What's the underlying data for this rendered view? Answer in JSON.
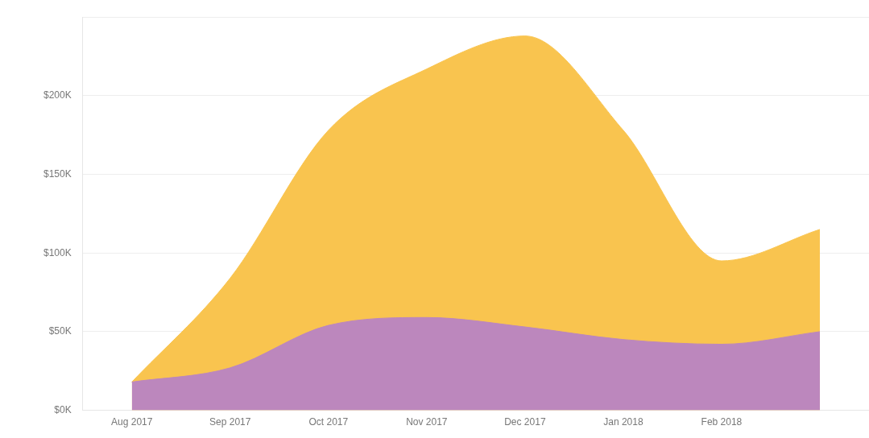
{
  "chart_data": {
    "type": "area",
    "categories": [
      "Aug 2017",
      "Sep 2017",
      "Oct 2017",
      "Nov 2017",
      "Dec 2017",
      "Jan 2018",
      "Feb 2018",
      null
    ],
    "series": [
      {
        "color": "#f9c44f",
        "values": [
          18,
          84,
          178,
          217,
          238,
          178,
          95,
          115
        ]
      },
      {
        "color": "#bc87bd",
        "values": [
          18,
          27,
          54,
          59,
          53,
          45,
          42,
          50
        ]
      }
    ],
    "ylim": [
      0,
      250
    ],
    "yticks": [
      {
        "value": 0,
        "label": "$0K"
      },
      {
        "value": 50,
        "label": "$50K"
      },
      {
        "value": 100,
        "label": "$100K"
      },
      {
        "value": 150,
        "label": "$150K"
      },
      {
        "value": 200,
        "label": "$200K"
      },
      {
        "value": 250,
        "label": null
      }
    ],
    "grid": "y",
    "legend": false
  }
}
